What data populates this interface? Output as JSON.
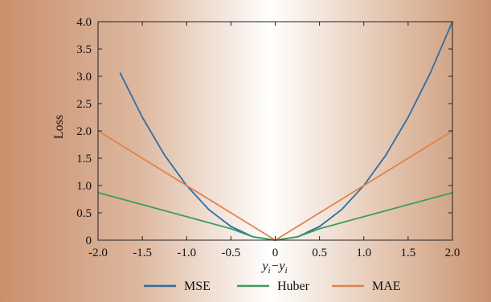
{
  "chart_data": {
    "type": "line",
    "title": "",
    "xlabel": "yi−yi",
    "ylabel": "Loss",
    "xlim": [
      -2.0,
      2.0
    ],
    "ylim": [
      0,
      4.0
    ],
    "xticks": [
      "-2.0",
      "-1.5",
      "-1.0",
      "-0.5",
      "0",
      "0.5",
      "1.0",
      "1.5",
      "2.0"
    ],
    "yticks": [
      "0",
      "0.5",
      "1.0",
      "1.5",
      "2.0",
      "2.5",
      "3.0",
      "3.5",
      "4.0"
    ],
    "grid": false,
    "legend_position": "bottom",
    "series": [
      {
        "name": "MSE",
        "color": "#2e6ea4",
        "x": [
          -1.75,
          -1.5,
          -1.25,
          -1.0,
          -0.75,
          -0.5,
          -0.25,
          0,
          0.25,
          0.5,
          0.75,
          1.0,
          1.25,
          1.5,
          1.75,
          2.0
        ],
        "y": [
          3.06,
          2.25,
          1.56,
          1.0,
          0.56,
          0.25,
          0.06,
          0,
          0.06,
          0.25,
          0.56,
          1.0,
          1.56,
          2.25,
          3.06,
          4.0
        ]
      },
      {
        "name": "Huber",
        "color": "#3b9e5a",
        "x": [
          -2.0,
          -1.5,
          -1.0,
          -0.5,
          -0.25,
          0,
          0.25,
          0.5,
          1.0,
          1.5,
          2.0
        ],
        "y": [
          0.87,
          0.65,
          0.43,
          0.21,
          0.06,
          0,
          0.06,
          0.21,
          0.43,
          0.65,
          0.87
        ]
      },
      {
        "name": "MAE",
        "color": "#e0824f",
        "x": [
          -2.0,
          -1.0,
          0,
          1.0,
          2.0
        ],
        "y": [
          2.0,
          1.0,
          0,
          1.0,
          2.0
        ]
      }
    ]
  }
}
